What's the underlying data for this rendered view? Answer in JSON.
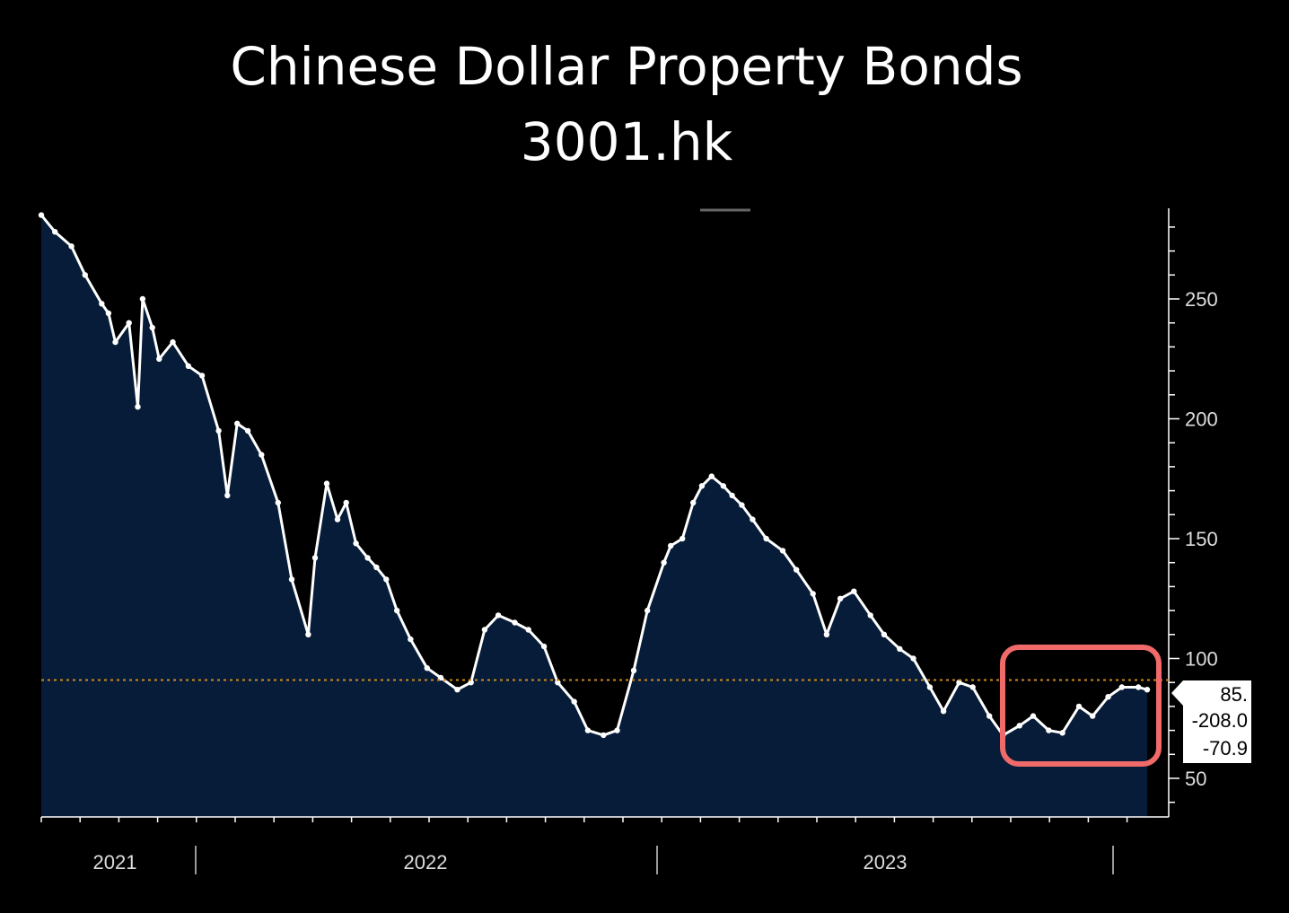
{
  "chart_data": {
    "type": "area",
    "title": "Chinese Dollar Property Bonds",
    "subtitle": "3001.hk",
    "ylim": [
      30,
      285
    ],
    "y_ticks": [
      50,
      100,
      150,
      200,
      250
    ],
    "x_year_labels": [
      "2021",
      "2022",
      "2023"
    ],
    "current_value_line": 91,
    "side_values": [
      "85.",
      "-208.0",
      "-70.9"
    ],
    "series": [
      {
        "x": [
          "2020-12-01",
          "2020-12-15",
          "2021-01-01",
          "2021-01-15",
          "2021-02-01",
          "2021-02-08",
          "2021-02-15",
          "2021-03-01",
          "2021-03-10",
          "2021-03-15",
          "2021-03-25",
          "2021-04-01",
          "2021-04-15",
          "2021-05-01",
          "2021-05-15",
          "2021-06-01",
          "2021-06-10",
          "2021-06-20",
          "2021-07-01",
          "2021-07-15",
          "2021-08-01",
          "2021-08-15",
          "2021-09-01",
          "2021-09-08",
          "2021-09-20",
          "2021-10-01",
          "2021-10-10",
          "2021-10-20",
          "2021-11-01",
          "2021-11-10",
          "2021-11-20",
          "2021-12-01",
          "2021-12-15",
          "2022-01-01",
          "2022-01-15",
          "2022-02-01",
          "2022-02-15",
          "2022-03-01",
          "2022-03-15",
          "2022-04-01",
          "2022-04-15",
          "2022-05-01",
          "2022-05-15",
          "2022-06-01",
          "2022-06-15",
          "2022-07-01",
          "2022-07-15",
          "2022-08-01",
          "2022-08-15",
          "2022-09-01",
          "2022-09-08",
          "2022-09-20",
          "2022-10-01",
          "2022-10-10",
          "2022-10-20",
          "2022-11-01",
          "2022-11-10",
          "2022-11-20",
          "2022-12-01",
          "2022-12-15",
          "2023-01-01",
          "2023-01-15",
          "2023-02-01",
          "2023-02-15",
          "2023-03-01",
          "2023-03-15",
          "2023-04-01",
          "2023-04-15",
          "2023-05-01",
          "2023-05-15",
          "2023-06-01",
          "2023-06-15",
          "2023-07-01",
          "2023-07-15",
          "2023-08-01",
          "2023-08-15",
          "2023-09-01",
          "2023-09-15",
          "2023-10-01",
          "2023-10-15",
          "2023-11-01",
          "2023-11-15",
          "2023-12-01",
          "2023-12-15",
          "2024-01-01",
          "2024-01-10"
        ],
        "values": [
          285,
          278,
          272,
          260,
          248,
          244,
          232,
          240,
          205,
          250,
          238,
          225,
          232,
          222,
          218,
          195,
          168,
          198,
          195,
          185,
          165,
          133,
          110,
          142,
          173,
          158,
          165,
          148,
          142,
          138,
          133,
          120,
          108,
          96,
          92,
          87,
          90,
          112,
          118,
          115,
          112,
          105,
          90,
          82,
          70,
          68,
          70,
          95,
          120,
          140,
          147,
          150,
          165,
          172,
          176,
          172,
          168,
          164,
          158,
          150,
          145,
          137,
          127,
          110,
          125,
          128,
          118,
          110,
          104,
          100,
          88,
          78,
          90,
          88,
          76,
          68,
          72,
          76,
          70,
          69,
          80,
          76,
          84,
          88,
          88,
          87
        ]
      }
    ]
  }
}
